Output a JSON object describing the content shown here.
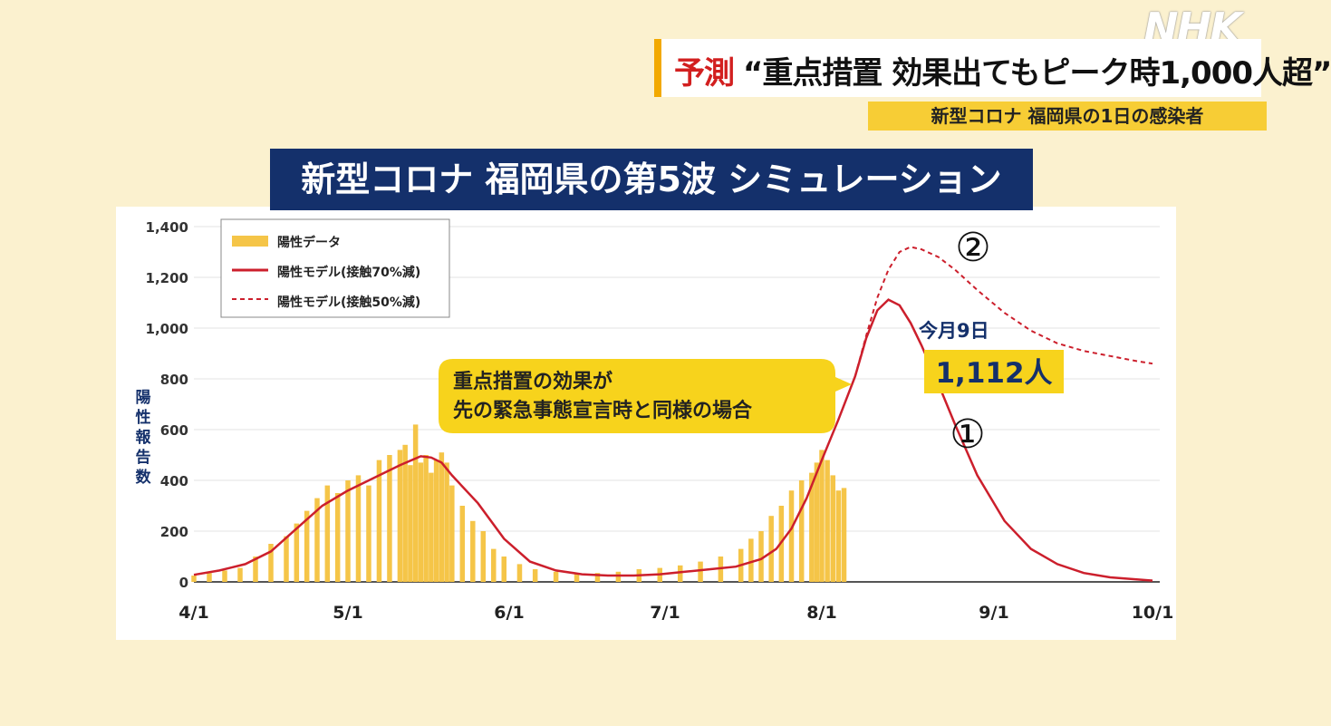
{
  "headline": {
    "prefix": "予測",
    "text": "“重点措置 効果出てもピーク時1,000人超”"
  },
  "subheadline": "新型コロナ 福岡県の1日の感染者",
  "logo": "NHK",
  "chart_title": "新型コロナ 福岡県の第5波 シミュレーション",
  "colors": {
    "bars": "#f5c548",
    "model": "#cc1f2c",
    "callout": "#f7d31c",
    "title_band": "#14306b"
  },
  "chart_data": {
    "type": "bar",
    "ylabel": "陽性報告数",
    "ylim": [
      0,
      1400
    ],
    "y_ticks": [
      "0",
      "200",
      "400",
      "600",
      "800",
      "1,000",
      "1,200",
      "1,400"
    ],
    "x_ticks": [
      "4/1",
      "5/1",
      "6/1",
      "7/1",
      "8/1",
      "9/1",
      "10/1"
    ],
    "grid": true,
    "legend_position": "top-left",
    "legend": [
      "陽性データ",
      "陽性モデル(接触70%減)",
      "陽性モデル(接触50%減)"
    ],
    "series": [
      {
        "name": "陽性データ",
        "style": "bar",
        "days": [
          0,
          3,
          6,
          9,
          12,
          15,
          18,
          20,
          22,
          24,
          26,
          28,
          30,
          32,
          34,
          36,
          38,
          40,
          41,
          42,
          43,
          44,
          45,
          46,
          47,
          48,
          49,
          50,
          52,
          54,
          56,
          58,
          60,
          63,
          66,
          70,
          74,
          78,
          82,
          86,
          90,
          94,
          98,
          102,
          106,
          108,
          110,
          112,
          114,
          116,
          118,
          120,
          121,
          122,
          123,
          124,
          125,
          126
        ],
        "values": [
          25,
          35,
          45,
          55,
          100,
          150,
          180,
          230,
          280,
          330,
          380,
          350,
          400,
          420,
          380,
          480,
          500,
          520,
          540,
          460,
          620,
          470,
          500,
          430,
          480,
          510,
          470,
          380,
          300,
          240,
          200,
          130,
          100,
          70,
          50,
          40,
          35,
          35,
          40,
          50,
          55,
          65,
          80,
          100,
          130,
          170,
          200,
          260,
          300,
          360,
          400,
          430,
          470,
          520,
          480,
          420,
          360,
          370
        ]
      },
      {
        "name": "陽性モデル(接触70%減)",
        "style": "solid",
        "days": [
          0,
          5,
          10,
          15,
          20,
          25,
          30,
          35,
          40,
          44,
          46,
          48,
          50,
          55,
          60,
          65,
          70,
          75,
          80,
          85,
          90,
          95,
          100,
          105,
          110,
          113,
          116,
          119,
          122,
          125,
          128,
          130,
          132,
          134,
          136,
          138,
          140,
          143,
          146,
          150,
          155,
          160,
          165,
          170,
          175,
          180,
          185
        ],
        "values": [
          28,
          45,
          70,
          120,
          210,
          300,
          360,
          410,
          460,
          495,
          490,
          470,
          420,
          310,
          170,
          80,
          45,
          30,
          25,
          25,
          30,
          40,
          50,
          60,
          90,
          130,
          210,
          330,
          480,
          640,
          810,
          960,
          1070,
          1112,
          1090,
          1020,
          930,
          780,
          620,
          420,
          240,
          130,
          70,
          35,
          18,
          10,
          5
        ]
      },
      {
        "name": "陽性モデル(接触50%減)",
        "style": "dashed",
        "days": [
          128,
          130,
          132,
          134,
          136,
          138,
          140,
          143,
          146,
          150,
          155,
          160,
          165,
          170,
          175,
          180,
          185
        ],
        "values": [
          810,
          970,
          1120,
          1230,
          1300,
          1320,
          1310,
          1280,
          1230,
          1150,
          1060,
          990,
          940,
          910,
          890,
          870,
          860
        ]
      }
    ],
    "annotations": {
      "callout": [
        "重点措置の効果が",
        "先の緊急事態宣言時と同様の場合"
      ],
      "peak_date": "今月9日",
      "peak_value": "1,112人",
      "marker_1": "①",
      "marker_2": "②"
    }
  }
}
